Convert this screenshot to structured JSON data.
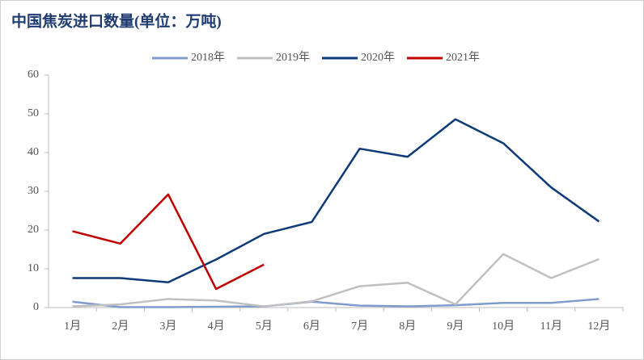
{
  "chart_data": {
    "type": "line",
    "title": "中国焦炭进口数量(单位：万吨)",
    "categories": [
      "1月",
      "2月",
      "3月",
      "4月",
      "5月",
      "6月",
      "7月",
      "8月",
      "9月",
      "10月",
      "11月",
      "12月"
    ],
    "series": [
      {
        "name": "2018年",
        "color": "#7f9ccc",
        "values": [
          1.5,
          0.1,
          0.1,
          0.2,
          0.3,
          1.5,
          0.5,
          0.3,
          0.6,
          1.2,
          1.2,
          2.2
        ]
      },
      {
        "name": "2019年",
        "color": "#c0c0c0",
        "values": [
          0.3,
          0.8,
          2.2,
          1.8,
          0.3,
          1.6,
          5.5,
          6.4,
          0.8,
          13.8,
          7.6,
          12.5
        ]
      },
      {
        "name": "2020年",
        "color": "#0e3a7a",
        "values": [
          7.6,
          7.6,
          6.5,
          12.4,
          19.0,
          22.1,
          41.0,
          38.9,
          48.6,
          42.4,
          31.0,
          22.2
        ]
      },
      {
        "name": "2021年",
        "color": "#c00000",
        "values": [
          19.7,
          16.5,
          29.2,
          4.8,
          11.1,
          null,
          null,
          null,
          null,
          null,
          null,
          null
        ]
      }
    ],
    "ylim": [
      0,
      60
    ],
    "yticks": [
      0,
      10,
      20,
      30,
      40,
      50,
      60
    ],
    "legend": "top"
  }
}
